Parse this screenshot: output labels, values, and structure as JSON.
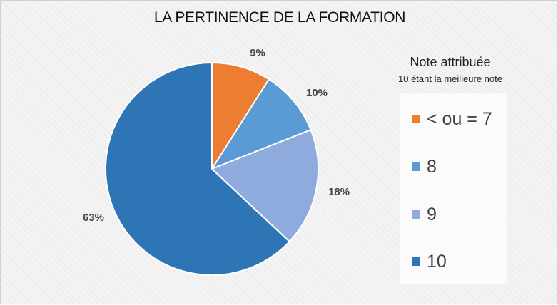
{
  "chart_data": {
    "type": "pie",
    "title": "LA PERTINENCE DE LA FORMATION",
    "legend_title": "Note attribuée",
    "legend_subtitle": "10 étant la meilleure note",
    "legend_placement": "right",
    "slices": [
      {
        "label": "< ou = 7",
        "value": 9,
        "display": "9%",
        "color": "#ED7D31"
      },
      {
        "label": "8",
        "value": 10,
        "display": "10%",
        "color": "#5B9BD5"
      },
      {
        "label": "9",
        "value": 18,
        "display": "18%",
        "color": "#8FAADC"
      },
      {
        "label": "10",
        "value": 63,
        "display": "63%",
        "color": "#2E75B6"
      }
    ]
  }
}
